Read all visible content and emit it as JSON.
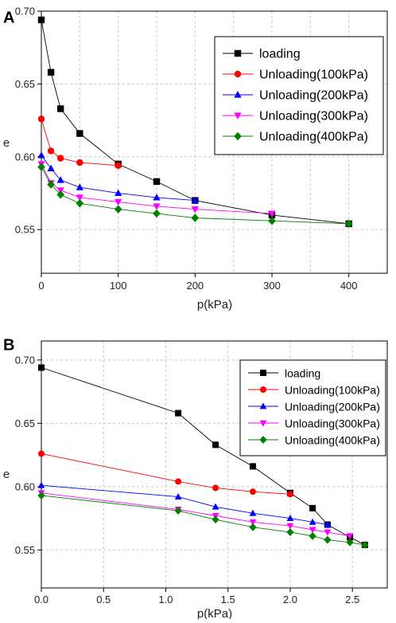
{
  "chart_data": [
    {
      "type": "line",
      "panel_label": "A",
      "xlabel": "p(kPa)",
      "ylabel": "e",
      "xlim": [
        0,
        450
      ],
      "ylim": [
        0.52,
        0.7
      ],
      "xticks": [
        "0",
        "100",
        "200",
        "300",
        "400"
      ],
      "yticks": [
        "0.55",
        "0.60",
        "0.65",
        "0.70"
      ],
      "grid": true,
      "legend_position": "top-right",
      "series": [
        {
          "name": "loading",
          "color": "#000000",
          "marker": "square",
          "x": [
            0,
            12.5,
            25,
            50,
            100,
            150,
            200,
            300,
            400
          ],
          "y": [
            0.694,
            0.658,
            0.633,
            0.616,
            0.595,
            0.583,
            0.57,
            0.56,
            0.554
          ]
        },
        {
          "name": "Unloading(100kPa)",
          "color": "#ff0000",
          "marker": "circle",
          "x": [
            0,
            12.5,
            25,
            50,
            100
          ],
          "y": [
            0.626,
            0.604,
            0.599,
            0.596,
            0.594
          ]
        },
        {
          "name": "Unloading(200kPa)",
          "color": "#0000ff",
          "marker": "triangle-up",
          "x": [
            0,
            12.5,
            25,
            50,
            100,
            150,
            200
          ],
          "y": [
            0.601,
            0.592,
            0.584,
            0.579,
            0.575,
            0.572,
            0.57
          ]
        },
        {
          "name": "Unloading(300kPa)",
          "color": "#ff00ff",
          "marker": "triangle-down",
          "x": [
            0,
            12.5,
            25,
            50,
            100,
            150,
            200,
            300
          ],
          "y": [
            0.595,
            0.582,
            0.577,
            0.572,
            0.569,
            0.566,
            0.564,
            0.561
          ]
        },
        {
          "name": "Unloading(400kPa)",
          "color": "#008000",
          "marker": "diamond",
          "x": [
            0,
            12.5,
            25,
            50,
            100,
            150,
            200,
            300,
            400
          ],
          "y": [
            0.593,
            0.581,
            0.574,
            0.568,
            0.564,
            0.561,
            0.558,
            0.556,
            0.554
          ]
        }
      ]
    },
    {
      "type": "line",
      "panel_label": "B",
      "xlabel": "p(kPa)",
      "ylabel": "e",
      "xlim": [
        0,
        2.78
      ],
      "ylim": [
        0.52,
        0.7
      ],
      "xticks": [
        "0.0",
        "0.5",
        "1.0",
        "1.5",
        "2.0",
        "2.5"
      ],
      "yticks": [
        "0.55",
        "0.60",
        "0.65",
        "0.70"
      ],
      "grid": true,
      "legend_position": "top-right",
      "series": [
        {
          "name": "loading",
          "color": "#000000",
          "marker": "square",
          "x": [
            0,
            1.1,
            1.4,
            1.7,
            2.0,
            2.18,
            2.3,
            2.48,
            2.6
          ],
          "y": [
            0.694,
            0.658,
            0.633,
            0.616,
            0.595,
            0.583,
            0.57,
            0.56,
            0.554
          ]
        },
        {
          "name": "Unloading(100kPa)",
          "color": "#ff0000",
          "marker": "circle",
          "x": [
            0,
            1.1,
            1.4,
            1.7,
            2.0
          ],
          "y": [
            0.626,
            0.604,
            0.599,
            0.596,
            0.594
          ]
        },
        {
          "name": "Unloading(200kPa)",
          "color": "#0000ff",
          "marker": "triangle-up",
          "x": [
            0,
            1.1,
            1.4,
            1.7,
            2.0,
            2.18,
            2.3
          ],
          "y": [
            0.601,
            0.592,
            0.584,
            0.579,
            0.575,
            0.572,
            0.57
          ]
        },
        {
          "name": "Unloading(300kPa)",
          "color": "#ff00ff",
          "marker": "triangle-down",
          "x": [
            0,
            1.1,
            1.4,
            1.7,
            2.0,
            2.18,
            2.3,
            2.48
          ],
          "y": [
            0.595,
            0.582,
            0.577,
            0.572,
            0.569,
            0.566,
            0.564,
            0.561
          ]
        },
        {
          "name": "Unloading(400kPa)",
          "color": "#008000",
          "marker": "diamond",
          "x": [
            0,
            1.1,
            1.4,
            1.7,
            2.0,
            2.18,
            2.3,
            2.48,
            2.6
          ],
          "y": [
            0.593,
            0.581,
            0.574,
            0.568,
            0.564,
            0.561,
            0.558,
            0.556,
            0.554
          ]
        }
      ]
    }
  ]
}
